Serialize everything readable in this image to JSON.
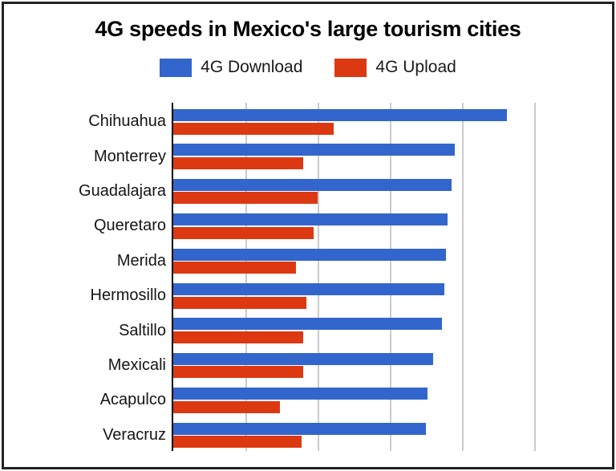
{
  "chart_data": {
    "type": "bar",
    "orientation": "horizontal",
    "title": "4G speeds in Mexico's large tourism cities",
    "xlabel": "",
    "ylabel": "",
    "legend_position": "top",
    "grid": true,
    "x_tick_labels_visible": false,
    "xlim": [
      0,
      30
    ],
    "gridline_interval": 5,
    "gridline_color": "#cbcbcb",
    "axis_color": "#000000",
    "categories": [
      "Chihuahua",
      "Monterrey",
      "Guadalajara",
      "Queretaro",
      "Merida",
      "Hermosillo",
      "Saltillo",
      "Mexicali",
      "Acapulco",
      "Veracruz"
    ],
    "series": [
      {
        "name": "4G Download",
        "color": "#3366cc",
        "values": [
          23.1,
          19.5,
          19.3,
          19.0,
          18.9,
          18.8,
          18.6,
          18.0,
          17.6,
          17.5
        ]
      },
      {
        "name": "4G Upload",
        "color": "#dc3912",
        "values": [
          11.1,
          9.0,
          10.0,
          9.7,
          8.5,
          9.2,
          9.0,
          9.0,
          7.4,
          8.9
        ]
      }
    ]
  }
}
